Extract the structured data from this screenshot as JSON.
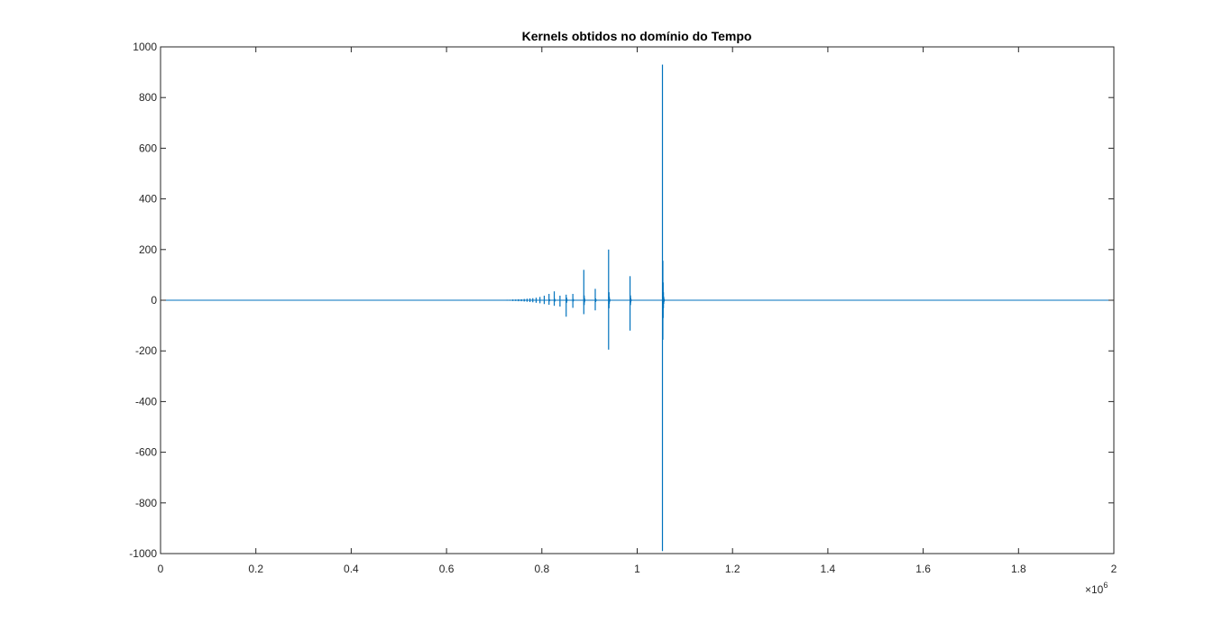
{
  "chart_data": {
    "type": "line",
    "title": "Kernels obtidos no domínio do Tempo",
    "xlabel": "",
    "ylabel": "",
    "xlim": [
      0,
      2000000
    ],
    "ylim": [
      -1000,
      1000
    ],
    "x_multiplier_base": "×10",
    "x_multiplier_exponent": "6",
    "x_ticks": [
      0,
      200000,
      400000,
      600000,
      800000,
      1000000,
      1200000,
      1400000,
      1600000,
      1800000,
      2000000
    ],
    "x_tick_labels": [
      "0",
      "0.2",
      "0.4",
      "0.6",
      "0.8",
      "1",
      "1.2",
      "1.4",
      "1.6",
      "1.8",
      "2"
    ],
    "y_ticks": [
      -1000,
      -800,
      -600,
      -400,
      -200,
      0,
      200,
      400,
      600,
      800,
      1000
    ],
    "y_tick_labels": [
      "-1000",
      "-800",
      "-600",
      "-400",
      "-200",
      "0",
      "200",
      "400",
      "600",
      "800",
      "1000"
    ],
    "grid": false,
    "series": [
      {
        "color": "#0072BD",
        "baseline": 0,
        "spikes": [
          {
            "x": 727000,
            "max": 2,
            "min": -2
          },
          {
            "x": 733000,
            "max": 2,
            "min": -2
          },
          {
            "x": 739000,
            "max": 3,
            "min": -3
          },
          {
            "x": 745000,
            "max": 3,
            "min": -3
          },
          {
            "x": 751000,
            "max": 4,
            "min": -4
          },
          {
            "x": 757000,
            "max": 4,
            "min": -4
          },
          {
            "x": 763000,
            "max": 5,
            "min": -5
          },
          {
            "x": 769000,
            "max": 6,
            "min": -6
          },
          {
            "x": 775000,
            "max": 7,
            "min": -7
          },
          {
            "x": 781000,
            "max": 8,
            "min": -8
          },
          {
            "x": 788000,
            "max": 10,
            "min": -10
          },
          {
            "x": 796000,
            "max": 13,
            "min": -12
          },
          {
            "x": 805000,
            "max": 18,
            "min": -15
          },
          {
            "x": 815000,
            "max": 25,
            "min": -18
          },
          {
            "x": 826000,
            "max": 35,
            "min": -22
          },
          {
            "x": 838000,
            "max": 18,
            "min": -25
          },
          {
            "x": 851000,
            "max": 22,
            "min": -65
          },
          {
            "x": 865000,
            "max": 25,
            "min": -30
          },
          {
            "x": 888000,
            "max": 120,
            "min": -55
          },
          {
            "x": 912000,
            "max": 45,
            "min": -40
          },
          {
            "x": 940000,
            "max": 200,
            "min": -195
          },
          {
            "x": 985000,
            "max": 95,
            "min": -120
          },
          {
            "x": 1053000,
            "max": 930,
            "min": -990
          }
        ]
      }
    ]
  }
}
